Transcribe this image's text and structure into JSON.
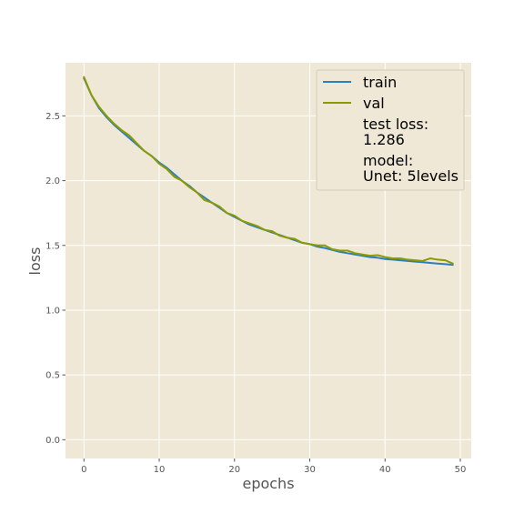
{
  "chart_data": {
    "type": "line",
    "xlabel": "epochs",
    "ylabel": "loss",
    "xlim": [
      -2.45,
      51.45
    ],
    "ylim": [
      -0.145,
      2.91
    ],
    "xticks": [
      0,
      10,
      20,
      30,
      40,
      50
    ],
    "xtick_labels": [
      "0",
      "10",
      "20",
      "30",
      "40",
      "50"
    ],
    "yticks": [
      0.0,
      0.5,
      1.0,
      1.5,
      2.0,
      2.5
    ],
    "ytick_labels": [
      "0.0",
      "0.5",
      "1.0",
      "1.5",
      "2.0",
      "2.5"
    ],
    "grid": true,
    "legend_position": "top-right",
    "background": "#efe8d6",
    "x": [
      0,
      1,
      2,
      3,
      4,
      5,
      6,
      7,
      8,
      9,
      10,
      11,
      12,
      13,
      14,
      15,
      16,
      17,
      18,
      19,
      20,
      21,
      22,
      23,
      24,
      25,
      26,
      27,
      28,
      29,
      30,
      31,
      32,
      33,
      34,
      35,
      36,
      37,
      38,
      39,
      40,
      41,
      42,
      43,
      44,
      45,
      46,
      47,
      48,
      49
    ],
    "series": [
      {
        "name": "train",
        "color": "#2b7fc1",
        "values": [
          2.79,
          2.66,
          2.56,
          2.49,
          2.43,
          2.38,
          2.33,
          2.28,
          2.23,
          2.19,
          2.14,
          2.1,
          2.05,
          2.0,
          1.96,
          1.91,
          1.87,
          1.83,
          1.79,
          1.75,
          1.72,
          1.69,
          1.66,
          1.64,
          1.62,
          1.6,
          1.58,
          1.56,
          1.54,
          1.52,
          1.51,
          1.49,
          1.48,
          1.465,
          1.45,
          1.44,
          1.43,
          1.42,
          1.41,
          1.405,
          1.395,
          1.39,
          1.385,
          1.38,
          1.375,
          1.37,
          1.365,
          1.36,
          1.355,
          1.35
        ]
      },
      {
        "name": "val",
        "color": "#8a9a00",
        "values": [
          2.8,
          2.66,
          2.57,
          2.5,
          2.44,
          2.39,
          2.35,
          2.29,
          2.23,
          2.19,
          2.13,
          2.09,
          2.03,
          2.0,
          1.95,
          1.91,
          1.85,
          1.83,
          1.8,
          1.75,
          1.73,
          1.69,
          1.67,
          1.65,
          1.62,
          1.61,
          1.575,
          1.56,
          1.55,
          1.52,
          1.51,
          1.5,
          1.5,
          1.47,
          1.46,
          1.46,
          1.44,
          1.43,
          1.42,
          1.425,
          1.41,
          1.4,
          1.4,
          1.39,
          1.385,
          1.38,
          1.4,
          1.39,
          1.385,
          1.36
        ]
      }
    ],
    "legend_notes": [
      [
        "test loss:",
        "1.286"
      ],
      [
        "model:",
        "Unet: 5levels"
      ]
    ]
  }
}
